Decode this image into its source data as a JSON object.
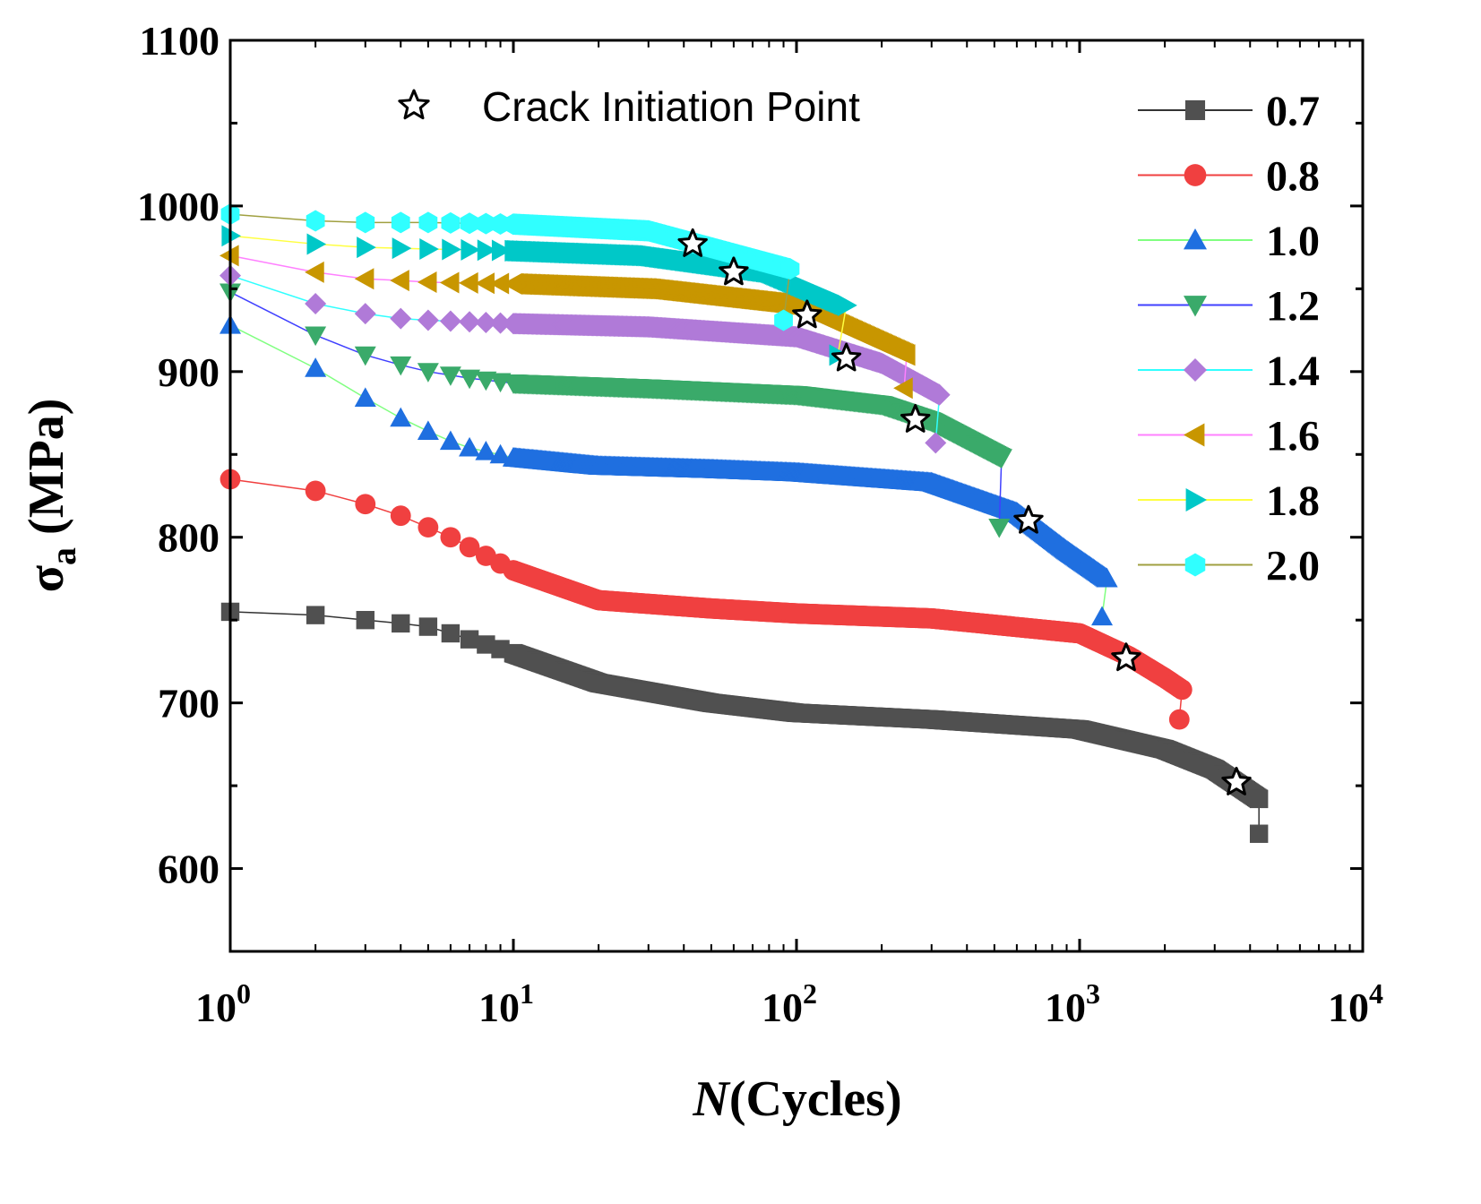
{
  "chart_data": {
    "type": "scatter",
    "xscale": "log",
    "xlim": [
      1,
      10000
    ],
    "ylim": [
      550,
      1100
    ],
    "xlabel_italic": "N",
    "xlabel_rest": "(Cycles)",
    "ylabel_main": "σ",
    "ylabel_sub": "a",
    "ylabel_unit": " (MPa)",
    "x_ticks": [
      {
        "base": "10",
        "exp": "0",
        "value": 1
      },
      {
        "base": "10",
        "exp": "1",
        "value": 10
      },
      {
        "base": "10",
        "exp": "2",
        "value": 100
      },
      {
        "base": "10",
        "exp": "3",
        "value": 1000
      },
      {
        "base": "10",
        "exp": "4",
        "value": 10000
      }
    ],
    "y_ticks": [
      "600",
      "700",
      "800",
      "900",
      "1000",
      "1100"
    ],
    "legend_position": "top-right",
    "annotation": {
      "label": "Crack Initiation Point",
      "marker": "star"
    },
    "series": [
      {
        "name": "0.7",
        "marker": "square",
        "color": "#505050",
        "line": "#333333",
        "points": [
          [
            1,
            755
          ],
          [
            2,
            753
          ],
          [
            3,
            750
          ],
          [
            4,
            748
          ],
          [
            5,
            746
          ],
          [
            6,
            742
          ],
          [
            10,
            730
          ],
          [
            20,
            712
          ],
          [
            50,
            700
          ],
          [
            100,
            694
          ],
          [
            300,
            690
          ],
          [
            1000,
            684
          ],
          [
            2000,
            672
          ],
          [
            3000,
            660
          ],
          [
            4300,
            642
          ]
        ],
        "final": [
          4300,
          621
        ],
        "crack": [
          3580,
          652
        ]
      },
      {
        "name": "0.8",
        "marker": "circle",
        "color": "#f04040",
        "line": "#f04040",
        "points": [
          [
            1,
            835
          ],
          [
            2,
            828
          ],
          [
            3,
            820
          ],
          [
            4,
            813
          ],
          [
            5,
            806
          ],
          [
            6,
            800
          ],
          [
            7,
            794
          ],
          [
            10,
            780
          ],
          [
            20,
            762
          ],
          [
            50,
            757
          ],
          [
            100,
            754
          ],
          [
            300,
            751
          ],
          [
            1000,
            742
          ],
          [
            1500,
            728
          ],
          [
            2000,
            715
          ],
          [
            2300,
            708
          ]
        ],
        "final": [
          2250,
          690
        ],
        "crack": [
          1460,
          727
        ]
      },
      {
        "name": "1.0",
        "marker": "triangle-up",
        "color": "#1f6fe0",
        "line": "#80ff80",
        "points": [
          [
            1,
            928
          ],
          [
            2,
            902
          ],
          [
            3,
            884
          ],
          [
            4,
            872
          ],
          [
            5,
            864
          ],
          [
            6,
            858
          ],
          [
            7,
            854
          ],
          [
            10,
            848
          ],
          [
            20,
            843
          ],
          [
            50,
            841
          ],
          [
            100,
            839
          ],
          [
            300,
            833
          ],
          [
            600,
            815
          ],
          [
            900,
            792
          ],
          [
            1250,
            775
          ]
        ],
        "final": [
          1200,
          752
        ],
        "crack": [
          660,
          810
        ]
      },
      {
        "name": "1.2",
        "marker": "triangle-down",
        "color": "#3aaa6a",
        "line": "#4040ff",
        "points": [
          [
            1,
            948
          ],
          [
            2,
            922
          ],
          [
            3,
            910
          ],
          [
            4,
            904
          ],
          [
            5,
            900
          ],
          [
            7,
            896
          ],
          [
            10,
            893
          ],
          [
            30,
            890
          ],
          [
            100,
            886
          ],
          [
            200,
            880
          ],
          [
            300,
            870
          ],
          [
            530,
            848
          ]
        ],
        "final": [
          520,
          806
        ],
        "crack": [
          263,
          871
        ]
      },
      {
        "name": "1.4",
        "marker": "diamond",
        "color": "#b07ad8",
        "line": "#30ffff",
        "points": [
          [
            1,
            958
          ],
          [
            2,
            941
          ],
          [
            3,
            935
          ],
          [
            4,
            932
          ],
          [
            5,
            931
          ],
          [
            10,
            929
          ],
          [
            30,
            927
          ],
          [
            100,
            921
          ],
          [
            200,
            905
          ],
          [
            320,
            886
          ]
        ],
        "final": [
          310,
          857
        ],
        "crack": [
          150,
          908
        ]
      },
      {
        "name": "1.6",
        "marker": "triangle-left",
        "color": "#c89600",
        "line": "#ff80ff",
        "points": [
          [
            1,
            970
          ],
          [
            2,
            960
          ],
          [
            3,
            956
          ],
          [
            4,
            955
          ],
          [
            5,
            954
          ],
          [
            10,
            953
          ],
          [
            30,
            950
          ],
          [
            100,
            940
          ],
          [
            245,
            910
          ]
        ],
        "final": [
          240,
          890
        ],
        "crack": [
          109,
          934
        ]
      },
      {
        "name": "1.8",
        "marker": "triangle-right",
        "color": "#00c8c8",
        "line": "#ffff40",
        "points": [
          [
            1,
            982
          ],
          [
            2,
            977
          ],
          [
            3,
            975
          ],
          [
            5,
            974
          ],
          [
            10,
            973
          ],
          [
            30,
            970
          ],
          [
            80,
            960
          ],
          [
            150,
            940
          ]
        ],
        "final": [
          140,
          910
        ],
        "crack": [
          60,
          960
        ]
      },
      {
        "name": "2.0",
        "marker": "hexagon",
        "color": "#30ffff",
        "line": "#a0a040",
        "points": [
          [
            1,
            995
          ],
          [
            2,
            991
          ],
          [
            3,
            990
          ],
          [
            5,
            990
          ],
          [
            10,
            989
          ],
          [
            30,
            985
          ],
          [
            95,
            962
          ]
        ],
        "final": [
          90,
          931
        ],
        "crack": [
          43,
          977
        ]
      }
    ]
  }
}
